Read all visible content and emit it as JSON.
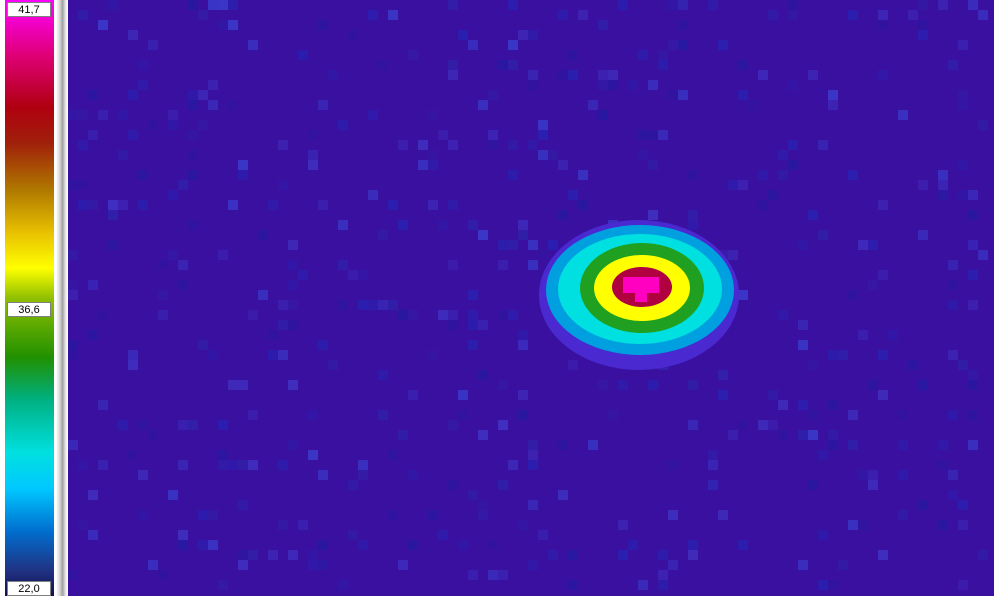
{
  "colorbar": {
    "max_label": "41,7",
    "mid_label": "36,6",
    "min_label": "22,0"
  },
  "thermal_image": {
    "background_color": "#3a10a0",
    "hotspot_colors": [
      "#4a2ad0",
      "#00a0e0",
      "#00e0e0",
      "#20a020",
      "#ffff00",
      "#ff00c0"
    ]
  }
}
